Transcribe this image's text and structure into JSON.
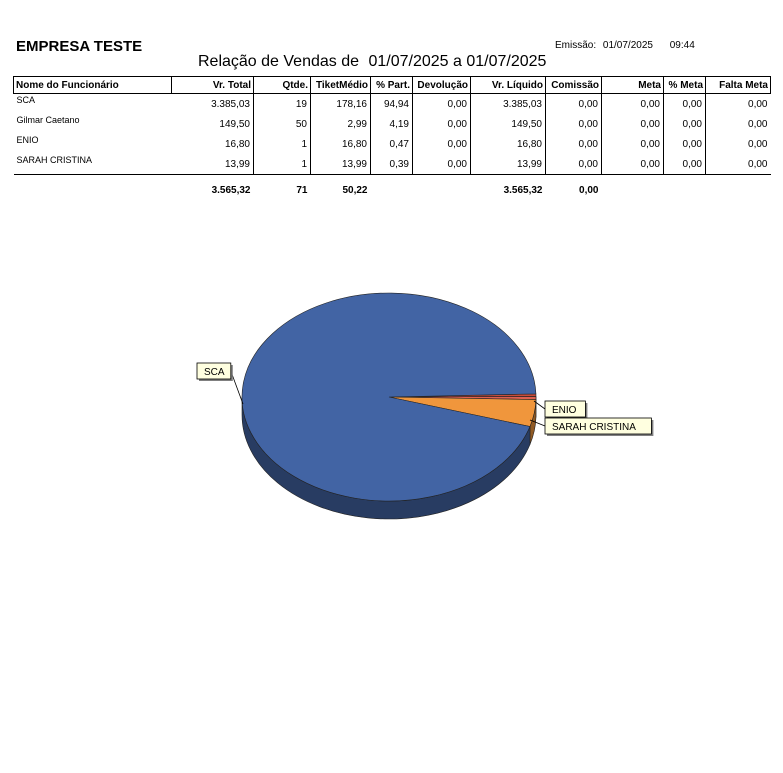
{
  "header": {
    "company": "EMPRESA TESTE",
    "emissao_label": "Emissão:",
    "emissao_date": "01/07/2025",
    "emissao_time": "09:44",
    "title_prefix": "Relação de Vendas de",
    "title_period": "01/07/2025 a 01/07/2025"
  },
  "table": {
    "columns": [
      "Nome do Funcionário",
      "Vr. Total",
      "Qtde.",
      "TiketMédio",
      "% Part.",
      "Devolução",
      "Vr. Líquido",
      "Comissão",
      "Meta",
      "% Meta",
      "Falta Meta"
    ],
    "rows": [
      [
        "SCA",
        "3.385,03",
        "19",
        "178,16",
        "94,94",
        "0,00",
        "3.385,03",
        "0,00",
        "0,00",
        "0,00",
        "0,00"
      ],
      [
        "Gilmar Caetano",
        "149,50",
        "50",
        "2,99",
        "4,19",
        "0,00",
        "149,50",
        "0,00",
        "0,00",
        "0,00",
        "0,00"
      ],
      [
        "ENIO",
        "16,80",
        "1",
        "16,80",
        "0,47",
        "0,00",
        "16,80",
        "0,00",
        "0,00",
        "0,00",
        "0,00"
      ],
      [
        "SARAH CRISTINA",
        "13,99",
        "1",
        "13,99",
        "0,39",
        "0,00",
        "13,99",
        "0,00",
        "0,00",
        "0,00",
        "0,00"
      ]
    ],
    "totals": [
      "",
      "3.565,32",
      "71",
      "50,22",
      "",
      "",
      "3.565,32",
      "0,00",
      "",
      "",
      ""
    ]
  },
  "chart_data": {
    "type": "pie",
    "slices": [
      {
        "label": "SCA",
        "value": 3385.03,
        "color": "#4264a4"
      },
      {
        "label": "Gilmar Caetano",
        "value": 149.5,
        "color": "#f0963c"
      },
      {
        "label": "ENIO",
        "value": 16.8,
        "color": "#e06050"
      },
      {
        "label": "SARAH CRISTINA",
        "value": 13.99,
        "color": "#c84c3c"
      }
    ],
    "labels_shown": [
      "SCA",
      "ENIO",
      "SARAH CRISTINA"
    ],
    "label_bg": "#ffffe0",
    "style": "3d"
  }
}
